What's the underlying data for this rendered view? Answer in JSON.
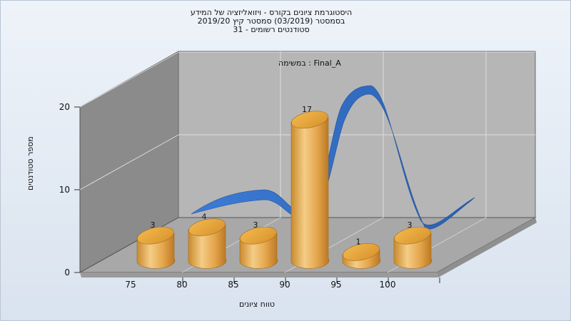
{
  "chart_data": {
    "type": "bar",
    "title": "היסטוגרמת ציונים בקורס - ויזואליזציה של המידע",
    "subtitle_lines": [
      "בסמסטר  (03/2019)  סמסטר קיץ 2019/20",
      "סטודנטים רשומים - 31"
    ],
    "series_label": "במשימה : Final_A",
    "xlabel": "טווח ציונים",
    "ylabel": "מספר סטודנטים",
    "x_ticks": [
      "75",
      "80",
      "85",
      "90",
      "95",
      "100"
    ],
    "y_ticks": [
      0,
      10,
      20
    ],
    "ylim": [
      0,
      20
    ],
    "bars": [
      {
        "x": 75,
        "value": 3
      },
      {
        "x": 80,
        "value": 4
      },
      {
        "x": 85,
        "value": 3
      },
      {
        "x": 90,
        "value": 17
      },
      {
        "x": 95,
        "value": 1
      },
      {
        "x": 100,
        "value": 3
      }
    ],
    "grid": true,
    "colors": {
      "bar": "#e8a53c",
      "curve": "#2f6cc0",
      "back_wall": "#b5b5b5",
      "side_wall": "#8a8a8a",
      "floor": "#a9a9a9"
    }
  }
}
